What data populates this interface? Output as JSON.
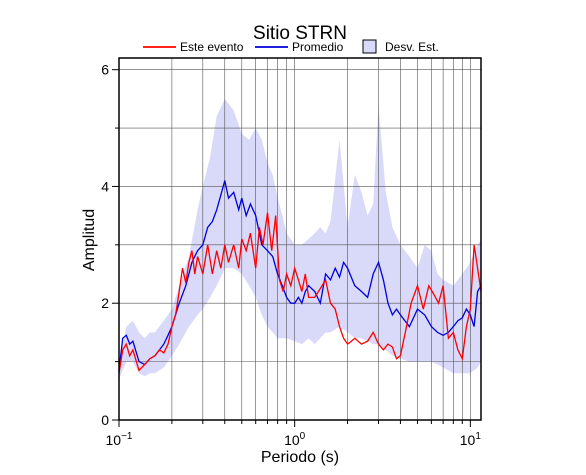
{
  "chart_data": {
    "type": "line",
    "title": "Sitio STRN",
    "xlabel": "Periodo (s)",
    "ylabel": "Amplitud",
    "x_scale": "log",
    "xlim": [
      0.1,
      11.5
    ],
    "ylim": [
      0,
      6.2
    ],
    "x_ticks": [
      {
        "value": 0.1,
        "base": "10",
        "exp": "−1"
      },
      {
        "value": 1,
        "base": "10",
        "exp": "0"
      },
      {
        "value": 10,
        "base": "10",
        "exp": "1"
      }
    ],
    "y_ticks": [
      {
        "value": 0,
        "label": "0"
      },
      {
        "value": 2,
        "label": "2"
      },
      {
        "value": 4,
        "label": "4"
      },
      {
        "value": 6,
        "label": "6"
      }
    ],
    "grid": true,
    "legend_position": "top",
    "legend": [
      {
        "label": "Este evento",
        "kind": "line",
        "color": "#ff0000"
      },
      {
        "label": "Promedio",
        "kind": "line",
        "color": "#0000dd"
      },
      {
        "label": "Desv. Est.",
        "kind": "box",
        "color": "#d9d9fa"
      }
    ],
    "series": [
      {
        "name": "Este evento",
        "color": "#ff0000",
        "x": [
          0.1,
          0.105,
          0.11,
          0.115,
          0.12,
          0.13,
          0.14,
          0.15,
          0.16,
          0.17,
          0.18,
          0.19,
          0.2,
          0.21,
          0.22,
          0.23,
          0.24,
          0.25,
          0.26,
          0.27,
          0.28,
          0.3,
          0.32,
          0.34,
          0.36,
          0.38,
          0.4,
          0.42,
          0.45,
          0.48,
          0.5,
          0.53,
          0.56,
          0.6,
          0.63,
          0.66,
          0.7,
          0.74,
          0.78,
          0.82,
          0.86,
          0.9,
          0.95,
          1.0,
          1.05,
          1.1,
          1.15,
          1.2,
          1.3,
          1.4,
          1.5,
          1.6,
          1.7,
          1.8,
          1.9,
          2.0,
          2.1,
          2.2,
          2.4,
          2.6,
          2.8,
          3.0,
          3.2,
          3.4,
          3.6,
          3.8,
          4.0,
          4.3,
          4.6,
          5.0,
          5.4,
          5.8,
          6.2,
          6.6,
          7.0,
          7.5,
          8.0,
          8.5,
          9.0,
          9.5,
          10.0,
          10.5,
          11.0,
          11.5
        ],
        "y": [
          0.8,
          1.2,
          1.3,
          1.1,
          1.2,
          0.85,
          0.95,
          1.05,
          1.1,
          1.2,
          1.15,
          1.3,
          1.6,
          1.8,
          2.2,
          2.6,
          2.35,
          2.7,
          2.9,
          2.5,
          2.8,
          2.5,
          3.0,
          2.5,
          2.9,
          2.6,
          3.0,
          2.7,
          3.0,
          2.6,
          3.1,
          2.9,
          3.2,
          2.6,
          3.3,
          3.0,
          3.55,
          2.9,
          3.5,
          2.4,
          2.2,
          2.5,
          2.3,
          2.6,
          2.4,
          2.2,
          2.5,
          2.1,
          2.1,
          2.25,
          2.4,
          2.0,
          1.9,
          1.6,
          1.4,
          1.3,
          1.35,
          1.4,
          1.3,
          1.35,
          1.5,
          1.3,
          1.2,
          1.3,
          1.25,
          1.05,
          1.1,
          1.55,
          2.0,
          2.3,
          1.9,
          2.3,
          2.15,
          2.0,
          2.3,
          1.4,
          1.5,
          1.2,
          1.05,
          1.6,
          1.9,
          3.0,
          2.6,
          2.2
        ]
      },
      {
        "name": "Promedio",
        "color": "#0000dd",
        "x": [
          0.1,
          0.105,
          0.11,
          0.115,
          0.12,
          0.13,
          0.14,
          0.15,
          0.16,
          0.17,
          0.18,
          0.19,
          0.2,
          0.22,
          0.24,
          0.26,
          0.28,
          0.3,
          0.32,
          0.34,
          0.36,
          0.38,
          0.4,
          0.42,
          0.45,
          0.48,
          0.5,
          0.53,
          0.56,
          0.6,
          0.65,
          0.7,
          0.75,
          0.8,
          0.85,
          0.9,
          0.95,
          1.0,
          1.05,
          1.1,
          1.15,
          1.2,
          1.3,
          1.4,
          1.5,
          1.6,
          1.7,
          1.8,
          1.9,
          2.0,
          2.2,
          2.4,
          2.6,
          2.8,
          3.0,
          3.2,
          3.4,
          3.6,
          3.8,
          4.0,
          4.5,
          5.0,
          5.5,
          6.0,
          6.5,
          7.0,
          7.5,
          8.0,
          8.5,
          9.0,
          9.5,
          10.0,
          10.5,
          11.0,
          11.5
        ],
        "y": [
          0.85,
          1.4,
          1.45,
          1.3,
          1.35,
          1.0,
          0.95,
          1.05,
          1.1,
          1.2,
          1.3,
          1.45,
          1.6,
          2.0,
          2.3,
          2.7,
          2.9,
          3.0,
          3.3,
          3.4,
          3.6,
          3.85,
          4.1,
          3.8,
          3.9,
          3.6,
          3.8,
          3.5,
          3.7,
          3.5,
          3.0,
          2.9,
          2.8,
          2.5,
          2.3,
          2.1,
          2.0,
          2.0,
          2.1,
          2.0,
          2.2,
          2.3,
          2.2,
          2.0,
          2.5,
          2.4,
          2.6,
          2.45,
          2.7,
          2.6,
          2.3,
          2.2,
          2.1,
          2.5,
          2.7,
          2.4,
          2.0,
          1.8,
          1.9,
          1.8,
          1.6,
          1.9,
          1.8,
          1.6,
          1.5,
          1.45,
          1.5,
          1.6,
          1.7,
          1.75,
          1.9,
          1.8,
          1.6,
          2.2,
          2.3
        ]
      }
    ],
    "band": {
      "name": "Desv. Est.",
      "color": "#d9d9fa",
      "x": [
        0.1,
        0.11,
        0.12,
        0.13,
        0.14,
        0.15,
        0.16,
        0.18,
        0.2,
        0.22,
        0.25,
        0.28,
        0.3,
        0.33,
        0.36,
        0.4,
        0.45,
        0.5,
        0.55,
        0.6,
        0.65,
        0.7,
        0.75,
        0.8,
        0.85,
        0.9,
        1.0,
        1.1,
        1.2,
        1.3,
        1.4,
        1.5,
        1.6,
        1.8,
        2.0,
        2.2,
        2.4,
        2.6,
        2.8,
        3.0,
        3.3,
        3.6,
        4.0,
        4.5,
        5.0,
        5.5,
        6.0,
        6.5,
        7.0,
        8.0,
        9.0,
        10.0,
        11.0,
        11.5
      ],
      "upper": [
        1.0,
        1.6,
        1.7,
        1.5,
        1.4,
        1.5,
        1.5,
        1.7,
        1.9,
        2.3,
        2.8,
        3.6,
        4.0,
        4.5,
        5.2,
        5.5,
        5.3,
        4.9,
        4.8,
        5.0,
        4.8,
        4.4,
        4.2,
        3.8,
        3.5,
        3.2,
        3.0,
        3.0,
        3.1,
        3.2,
        3.3,
        3.2,
        3.4,
        4.8,
        3.3,
        4.2,
        3.9,
        3.5,
        3.7,
        5.4,
        3.9,
        3.3,
        3.0,
        2.8,
        2.6,
        3.0,
        2.9,
        2.5,
        2.4,
        2.3,
        2.5,
        2.7,
        3.0,
        3.1
      ],
      "lower": [
        0.7,
        1.0,
        1.0,
        0.8,
        0.75,
        0.8,
        0.8,
        0.9,
        1.1,
        1.3,
        1.6,
        1.8,
        1.9,
        2.1,
        2.3,
        2.6,
        2.6,
        2.5,
        2.3,
        2.1,
        1.8,
        1.6,
        1.5,
        1.4,
        1.4,
        1.4,
        1.35,
        1.3,
        1.4,
        1.3,
        1.4,
        1.5,
        1.5,
        1.6,
        1.5,
        1.4,
        1.4,
        1.35,
        1.3,
        1.3,
        1.2,
        1.1,
        1.05,
        1.0,
        1.0,
        1.0,
        1.0,
        0.95,
        0.9,
        0.8,
        0.8,
        0.8,
        0.9,
        1.0
      ]
    }
  }
}
